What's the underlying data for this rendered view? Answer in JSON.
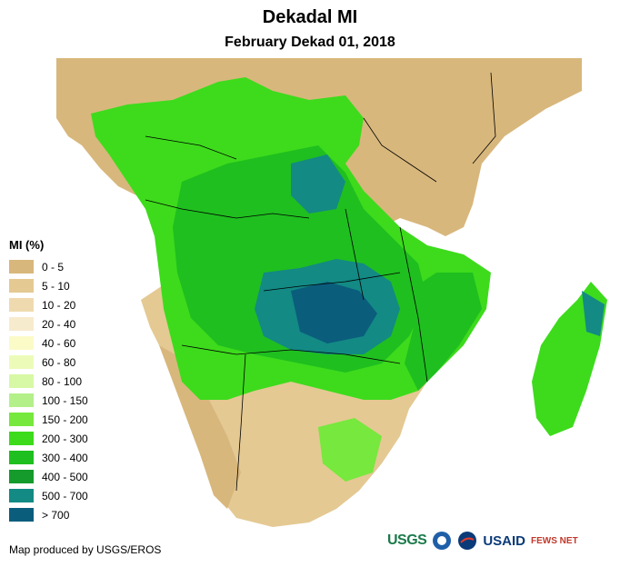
{
  "title": "Dekadal MI",
  "subtitle": "February Dekad 01, 2018",
  "legend": {
    "title": "MI (%)",
    "items": [
      {
        "label": "0 - 5",
        "color": "#d8b77c"
      },
      {
        "label": "5 - 10",
        "color": "#e4c993"
      },
      {
        "label": "10 - 20",
        "color": "#efdab0"
      },
      {
        "label": "20 - 40",
        "color": "#f7ebcd"
      },
      {
        "label": "40 - 60",
        "color": "#fbfbc8"
      },
      {
        "label": "60 - 80",
        "color": "#ecfcb8"
      },
      {
        "label": "80 - 100",
        "color": "#d7f8a4"
      },
      {
        "label": "100 - 150",
        "color": "#b3f08a"
      },
      {
        "label": "150 - 200",
        "color": "#77e83d"
      },
      {
        "label": "200 - 300",
        "color": "#3ddb1c"
      },
      {
        "label": "300 - 400",
        "color": "#1fbf1f"
      },
      {
        "label": "400 - 500",
        "color": "#149b2c"
      },
      {
        "label": "500 - 700",
        "color": "#138a84"
      },
      {
        "label": "> 700",
        "color": "#0b5d7c"
      }
    ]
  },
  "credit": "Map produced by USGS/EROS",
  "logos": {
    "usgs": "USGS",
    "usaid": "USAID",
    "fews": "FEWS NET"
  }
}
